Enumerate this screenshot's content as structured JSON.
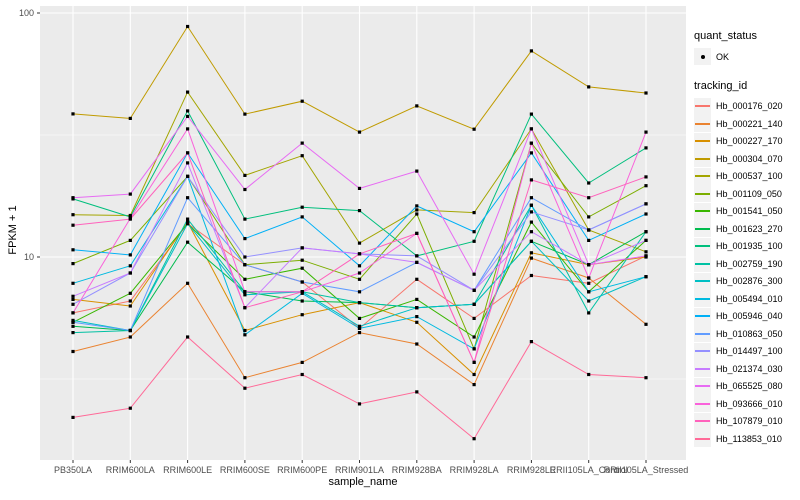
{
  "figure": {
    "background": "#FFFFFF",
    "panel_background": "#EBEBEB",
    "gridline_color": "#FFFFFF",
    "tick_label_color": "#4D4D4D",
    "point_color": "#000000"
  },
  "axes": {
    "x": {
      "title": "sample_name"
    },
    "y": {
      "title": "FPKM + 1",
      "scale": "log10",
      "tick_labels": [
        "100",
        "10"
      ],
      "tick_values": [
        100,
        10
      ]
    }
  },
  "legend": {
    "quant_status": {
      "title": "quant_status",
      "items": [
        {
          "label": "OK",
          "marker": "black-point"
        }
      ]
    },
    "tracking_id": {
      "title": "tracking_id"
    }
  },
  "chart_data": {
    "type": "line",
    "title": "",
    "xlabel": "sample_name",
    "ylabel": "FPKM + 1",
    "y_scale": "log10",
    "ylim": [
      1.5,
      107
    ],
    "grid": true,
    "legend_position": "right",
    "marker": "black-square-point",
    "categories": [
      "PB350LA",
      "RRIM600LA",
      "RRIM600LE",
      "RRIM600SE",
      "RRIM600PE",
      "RRIM901LA",
      "RRIM928BA",
      "RRIM928LA",
      "RRIM928LE",
      "RRII105LA_Control",
      "RRII105LA_Stressed"
    ],
    "series": [
      {
        "name": "Hb_000176_020",
        "color": "#F8766D",
        "values": [
          5.9,
          6.6,
          13.7,
          9.3,
          7.9,
          5.1,
          8.1,
          5.6,
          8.4,
          7.8,
          10.1
        ]
      },
      {
        "name": "Hb_000221_140",
        "color": "#EA8331",
        "values": [
          4.1,
          4.7,
          7.8,
          3.2,
          3.7,
          4.9,
          4.4,
          3.0,
          9.9,
          8.2,
          5.3
        ]
      },
      {
        "name": "Hb_000227_170",
        "color": "#D89000",
        "values": [
          6.7,
          6.3,
          13.9,
          5.0,
          5.8,
          6.5,
          5.4,
          3.3,
          10.4,
          9.3,
          10.0
        ]
      },
      {
        "name": "Hb_000304_070",
        "color": "#C09B00",
        "values": [
          38.6,
          37.0,
          88.0,
          38.5,
          43.5,
          32.5,
          41.6,
          33.4,
          69.9,
          49.8,
          47.0
        ]
      },
      {
        "name": "Hb_000537_100",
        "color": "#A3A500",
        "values": [
          14.9,
          14.8,
          47.4,
          21.6,
          26.0,
          11.4,
          15.6,
          15.2,
          33.5,
          12.9,
          10.5
        ]
      },
      {
        "name": "Hb_001109_050",
        "color": "#7CAE00",
        "values": [
          9.4,
          11.7,
          21.4,
          9.3,
          9.7,
          8.1,
          15.0,
          4.2,
          29.3,
          14.6,
          19.6
        ]
      },
      {
        "name": "Hb_001541_050",
        "color": "#39B600",
        "values": [
          5.4,
          7.1,
          13.7,
          8.1,
          9.0,
          5.6,
          6.7,
          4.7,
          13.9,
          7.2,
          11.7
        ]
      },
      {
        "name": "Hb_001623_270",
        "color": "#00BB4E",
        "values": [
          5.2,
          5.0,
          11.5,
          7.2,
          6.6,
          6.5,
          6.2,
          6.4,
          11.6,
          9.3,
          12.7
        ]
      },
      {
        "name": "Hb_001935_100",
        "color": "#00BF7D",
        "values": [
          17.3,
          14.6,
          39.7,
          14.3,
          16.0,
          15.5,
          10.1,
          11.6,
          38.5,
          20.1,
          28.0
        ]
      },
      {
        "name": "Hb_002759_190",
        "color": "#00C1A3",
        "values": [
          4.9,
          5.0,
          14.3,
          7.2,
          7.2,
          6.5,
          6.2,
          6.4,
          16.3,
          5.9,
          12.7
        ]
      },
      {
        "name": "Hb_002876_300",
        "color": "#00BFC4",
        "values": [
          5.5,
          5.0,
          13.7,
          7.0,
          7.2,
          5.2,
          6.2,
          6.4,
          11.6,
          6.6,
          8.3
        ]
      },
      {
        "name": "Hb_005494_010",
        "color": "#00BAE0",
        "values": [
          7.8,
          9.2,
          21.4,
          4.8,
          7.1,
          5.1,
          5.7,
          4.2,
          16.3,
          7.2,
          8.3
        ]
      },
      {
        "name": "Hb_005946_040",
        "color": "#00B0F6",
        "values": [
          10.7,
          10.2,
          26.7,
          11.9,
          14.6,
          9.2,
          16.2,
          12.7,
          26.7,
          11.7,
          15.0
        ]
      },
      {
        "name": "Hb_010863_050",
        "color": "#619CFF",
        "values": [
          5.4,
          5.0,
          17.5,
          9.3,
          7.9,
          7.2,
          9.5,
          7.3,
          17.5,
          12.9,
          16.5
        ]
      },
      {
        "name": "Hb_014497_100",
        "color": "#9590FF",
        "values": [
          6.4,
          8.6,
          21.4,
          10.0,
          10.9,
          10.3,
          10.1,
          7.3,
          15.3,
          12.9,
          16.5
        ]
      },
      {
        "name": "Hb_021374_030",
        "color": "#C77CFF",
        "values": [
          6.9,
          8.6,
          24.3,
          6.2,
          10.9,
          10.3,
          9.5,
          7.3,
          12.7,
          9.3,
          11.7
        ]
      },
      {
        "name": "Hb_065525_080",
        "color": "#E76BF3",
        "values": [
          17.5,
          18.1,
          37.7,
          18.9,
          29.3,
          19.1,
          22.5,
          8.5,
          33.5,
          9.3,
          10.1
        ]
      },
      {
        "name": "Hb_093666_010",
        "color": "#FA62DB",
        "values": [
          5.9,
          14.4,
          33.5,
          7.2,
          7.2,
          8.6,
          12.5,
          3.7,
          29.3,
          8.2,
          32.5
        ]
      },
      {
        "name": "Hb_107879_010",
        "color": "#FF62BC",
        "values": [
          13.5,
          14.3,
          26.7,
          6.2,
          7.2,
          10.3,
          12.5,
          3.7,
          20.7,
          17.5,
          21.3
        ]
      },
      {
        "name": "Hb_113853_010",
        "color": "#FF6A98",
        "values": [
          2.2,
          2.4,
          4.7,
          2.9,
          3.3,
          2.5,
          2.8,
          1.8,
          4.5,
          3.3,
          3.2
        ]
      }
    ]
  }
}
